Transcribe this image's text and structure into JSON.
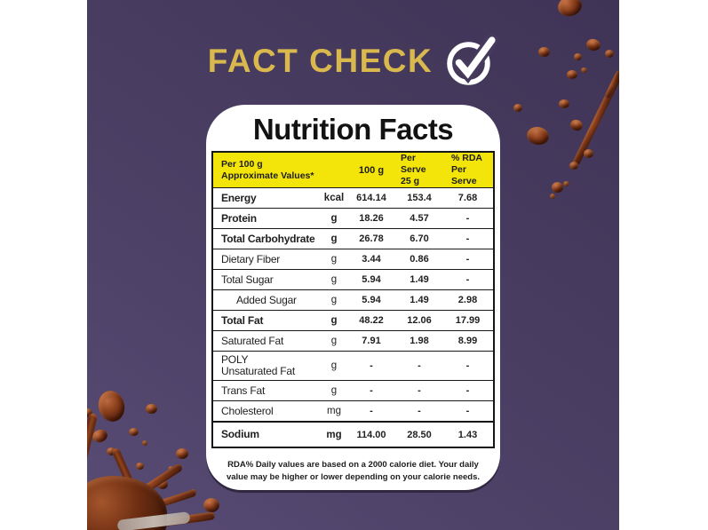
{
  "title": {
    "text": "FACT CHECK",
    "icon": "check-circle-icon"
  },
  "colors": {
    "background_purple": "#473b5f",
    "title_gold": "#d9b84e",
    "header_band_yellow": "#f3e50a",
    "card_white": "#ffffff",
    "table_ink": "#1a1a1a",
    "chocolate_brown": "#6d2d12"
  },
  "label_card": {
    "title": "Nutrition Facts",
    "header": {
      "col1_line1": "Per 100 g",
      "col1_line2": "Approximate Values*",
      "col2": "100 g",
      "col3_line1": "Per Serve",
      "col3_line2": "25 g",
      "col4_line1": "% RDA",
      "col4_line2": "Per Serve"
    },
    "rows": [
      {
        "label": "Energy",
        "unit": "kcal",
        "per_100g": "614.14",
        "per_serve": "153.4",
        "rda": "7.68",
        "bold": true
      },
      {
        "label": "Protein",
        "unit": "g",
        "per_100g": "18.26",
        "per_serve": "4.57",
        "rda": "-",
        "bold": true
      },
      {
        "label": "Total Carbohydrate",
        "unit": "g",
        "per_100g": "26.78",
        "per_serve": "6.70",
        "rda": "-",
        "bold": true
      },
      {
        "label": "Dietary Fiber",
        "unit": "g",
        "per_100g": "3.44",
        "per_serve": "0.86",
        "rda": "-"
      },
      {
        "label": "Total Sugar",
        "unit": "g",
        "per_100g": "5.94",
        "per_serve": "1.49",
        "rda": "-"
      },
      {
        "label": "Added Sugar",
        "unit": "g",
        "per_100g": "5.94",
        "per_serve": "1.49",
        "rda": "2.98",
        "indent": true
      },
      {
        "label": "Total Fat",
        "unit": "g",
        "per_100g": "48.22",
        "per_serve": "12.06",
        "rda": "17.99",
        "bold": true
      },
      {
        "label": "Saturated Fat",
        "unit": "g",
        "per_100g": "7.91",
        "per_serve": "1.98",
        "rda": "8.99"
      },
      {
        "label": "POLY Unsaturated Fat",
        "unit": "g",
        "per_100g": "-",
        "per_serve": "-",
        "rda": "-",
        "wrap": true
      },
      {
        "label": "Trans Fat",
        "unit": "g",
        "per_100g": "-",
        "per_serve": "-",
        "rda": "-"
      },
      {
        "label": "Cholesterol",
        "unit": "mg",
        "per_100g": "-",
        "per_serve": "-",
        "rda": "-"
      },
      {
        "label": "Sodium",
        "unit": "mg",
        "per_100g": "114.00",
        "per_serve": "28.50",
        "rda": "1.43",
        "bold": true,
        "thick_top": true
      }
    ],
    "footnote_line1": "RDA% Daily values are based on a 2000 calorie diet. Your daily",
    "footnote_line2": "value may be higher or lower depending on your calorie needs."
  }
}
